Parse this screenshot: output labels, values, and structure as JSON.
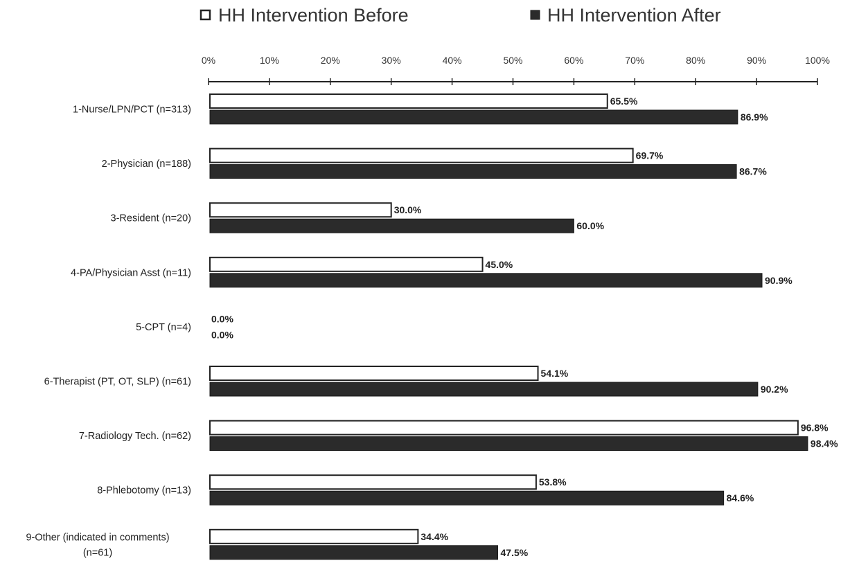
{
  "chart_data": {
    "type": "bar",
    "orientation": "horizontal",
    "title": "",
    "xlabel": "",
    "ylabel": "",
    "xlim": [
      0,
      100
    ],
    "tick_labels": [
      "0%",
      "10%",
      "20%",
      "30%",
      "40%",
      "50%",
      "60%",
      "70%",
      "80%",
      "90%",
      "100%"
    ],
    "legend_position": "top",
    "grid": false,
    "categories": [
      "1-Nurse/LPN/PCT (n=313)",
      "2-Physician (n=188)",
      "3-Resident (n=20)",
      "4-PA/Physician Asst (n=11)",
      "5-CPT (n=4)",
      "6-Therapist (PT, OT, SLP) (n=61)",
      "7-Radiology Tech. (n=62)",
      "8-Phlebotomy (n=13)",
      "9-Other (indicated in comments) (n=61)"
    ],
    "category_lines": [
      [
        "1-Nurse/LPN/PCT (n=313)"
      ],
      [
        "2-Physician (n=188)"
      ],
      [
        "3-Resident (n=20)"
      ],
      [
        "4-PA/Physician Asst (n=11)"
      ],
      [
        "5-CPT (n=4)"
      ],
      [
        "6-Therapist (PT, OT, SLP) (n=61)"
      ],
      [
        "7-Radiology Tech. (n=62)"
      ],
      [
        "8-Phlebotomy (n=13)"
      ],
      [
        "9-Other (indicated in comments)",
        "(n=61)"
      ]
    ],
    "series": [
      {
        "name": "HH Intervention Before",
        "color": "#ffffff",
        "stroke": "#222222",
        "values": [
          65.5,
          69.7,
          30.0,
          45.0,
          0.0,
          54.1,
          96.8,
          53.8,
          34.4
        ],
        "labels": [
          "65.5%",
          "69.7%",
          "30.0%",
          "45.0%",
          "0.0%",
          "54.1%",
          "96.8%",
          "53.8%",
          "34.4%"
        ]
      },
      {
        "name": "HH Intervention After",
        "color": "#2b2b2b",
        "stroke": "#1a1a1a",
        "values": [
          86.9,
          86.7,
          60.0,
          90.9,
          0.0,
          90.2,
          98.4,
          84.6,
          47.5
        ],
        "labels": [
          "86.9%",
          "86.7%",
          "60.0%",
          "90.9%",
          "0.0%",
          "90.2%",
          "98.4%",
          "84.6%",
          "47.5%"
        ]
      }
    ]
  }
}
